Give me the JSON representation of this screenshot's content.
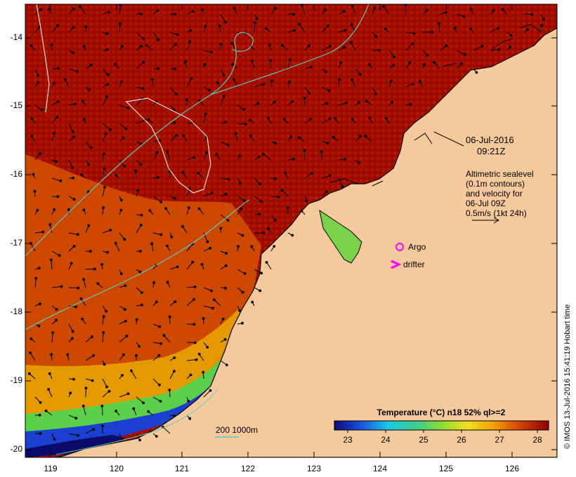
{
  "map": {
    "datetime_line1": "06-Jul-2016",
    "datetime_line2": "09:21Z",
    "legend_lines": [
      "Altimetric sealevel",
      "(0.1m contours)",
      "and velocity for",
      "06-Jul 09Z",
      "0.5m/s (1kt 24h)"
    ],
    "argo_label": "Argo",
    "drifter_label": "drifter",
    "depth_legend": "200 1000m",
    "copyright": "© IMOS 13-Jul-2016 15:41:19 Hobart time",
    "lat_labels": [
      "-14",
      "-15",
      "-16",
      "-17",
      "-18",
      "-19",
      "-20"
    ],
    "lon_labels": [
      "119",
      "120",
      "121",
      "122",
      "123",
      "124",
      "125",
      "126"
    ],
    "colors": {
      "ocean_warm": "#a30a00",
      "land": "#f6c99d",
      "contour": "#e8e8e8",
      "isobath": "#5fc7c0",
      "marker": "#ff00ff"
    }
  },
  "colorbar": {
    "title": "Temperature (°C) n18 52% ql>=2",
    "ticks": [
      "23",
      "24",
      "25",
      "26",
      "27",
      "28"
    ]
  }
}
